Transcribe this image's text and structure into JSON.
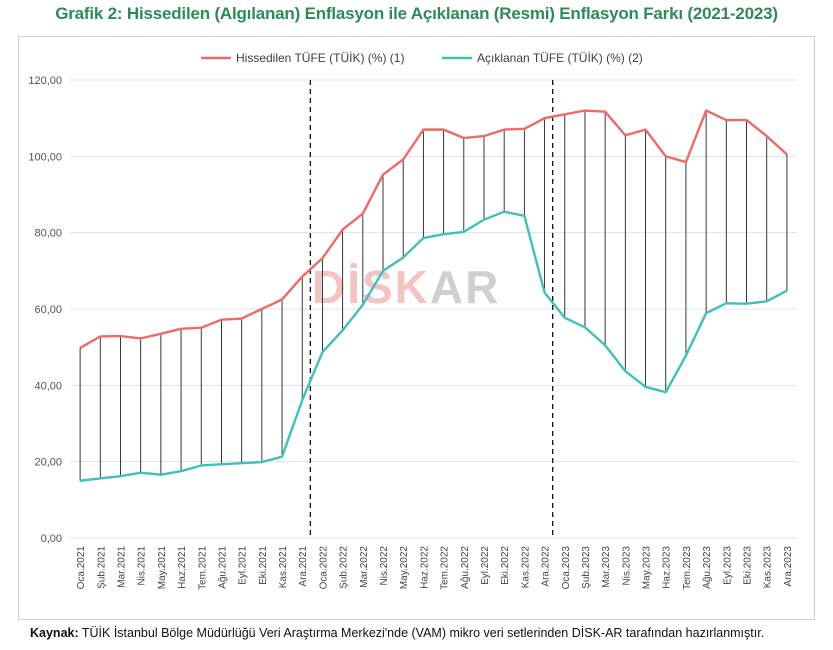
{
  "title": "Grafik 2: Hissedilen (Algılanan) Enflasyon ile Açıklanan (Resmi) Enflasyon Farkı (2021-2023)",
  "source": {
    "label": "Kaynak:",
    "text": "TÜİK İstanbul Bölge Müdürlüğü Veri Araştırma Merkezi'nde (VAM) mikro veri setlerinden DİSK-AR tarafından hazırlanmıştır."
  },
  "watermark": {
    "part1": "DİSK",
    "part2": "AR"
  },
  "colors": {
    "perceived": "#ec6b67",
    "official": "#3fc0bc",
    "grid": "#e3e3e3",
    "title": "#2e8b57"
  },
  "chart_data": {
    "type": "line",
    "categories": [
      "Oca.2021",
      "Şub.2021",
      "Mar.2021",
      "Nis.2021",
      "May.2021",
      "Haz.2021",
      "Tem.2021",
      "Ağu.2021",
      "Eyl.2021",
      "Eki.2021",
      "Kas.2021",
      "Ara.2021",
      "Oca.2022",
      "Şub.2022",
      "Mar.2022",
      "Nis.2022",
      "May.2022",
      "Haz.2022",
      "Tem.2022",
      "Ağu.2022",
      "Eyl.2022",
      "Eki.2022",
      "Kas.2022",
      "Ara.2022",
      "Oca.2023",
      "Şub.2023",
      "Mar.2023",
      "Nis.2023",
      "May.2023",
      "Haz.2023",
      "Tem.2023",
      "Ağu.2023",
      "Eyl.2023",
      "Eki.2023",
      "Kas.2023",
      "Ara.2023"
    ],
    "series": [
      {
        "name": "Hissedilen TÜFE (TÜİK) (%) (1)",
        "values": [
          49.8,
          52.8,
          52.9,
          52.3,
          53.5,
          54.8,
          55.1,
          57.2,
          57.5,
          60.0,
          62.5,
          68.5,
          73.3,
          80.8,
          85.0,
          95.2,
          99.2,
          107.0,
          107.0,
          104.8,
          105.3,
          107.0,
          107.2,
          110.0,
          111.0,
          112.0,
          111.7,
          105.5,
          107.0,
          100.0,
          98.5,
          112.0,
          109.5,
          109.5,
          105.3,
          100.5
        ]
      },
      {
        "name": "Açıklanan TÜFE (TÜİK) (%) (2)",
        "values": [
          15.0,
          15.6,
          16.2,
          17.1,
          16.6,
          17.5,
          19.0,
          19.3,
          19.6,
          19.9,
          21.3,
          36.1,
          48.7,
          54.4,
          61.1,
          70.0,
          73.5,
          78.6,
          79.6,
          80.2,
          83.4,
          85.5,
          84.4,
          64.3,
          57.7,
          55.2,
          50.5,
          43.7,
          39.6,
          38.2,
          47.8,
          58.9,
          61.5,
          61.4,
          62.0,
          64.8
        ]
      }
    ],
    "ylim": [
      0,
      120
    ],
    "yticks": [
      "0,00",
      "20,00",
      "40,00",
      "60,00",
      "80,00",
      "100,00",
      "120,00"
    ],
    "vertical_markers": [
      "Oca.2022",
      "Oca.2023"
    ],
    "grid": true,
    "legend": "top"
  }
}
